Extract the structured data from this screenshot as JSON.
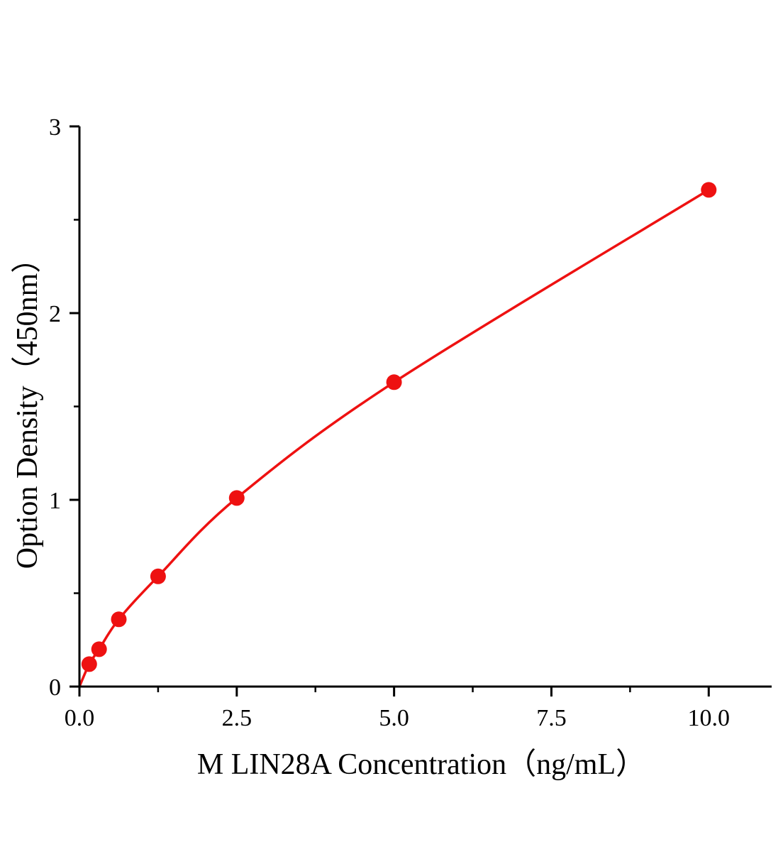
{
  "chart_data": {
    "type": "line",
    "title": "",
    "xlabel": "M LIN28A Concentration（ng/mL）",
    "ylabel": "Option Density（450nm）",
    "x": [
      0.156,
      0.3125,
      0.625,
      1.25,
      2.5,
      5.0,
      10.0
    ],
    "y": [
      0.12,
      0.2,
      0.36,
      0.59,
      1.01,
      1.63,
      2.66
    ],
    "curve_start": [
      0,
      0
    ],
    "xlim": [
      0,
      11
    ],
    "ylim": [
      0,
      3
    ],
    "x_ticks": [
      0.0,
      2.5,
      5.0,
      7.5,
      10.0
    ],
    "x_tick_labels": [
      "0.0",
      "2.5",
      "5.0",
      "7.5",
      "10.0"
    ],
    "y_ticks": [
      0,
      1,
      2,
      3
    ],
    "y_tick_labels": [
      "0",
      "1",
      "2",
      "3"
    ],
    "x_minor_ticks": [
      1.25,
      3.75,
      6.25,
      8.75
    ],
    "y_minor_ticks": [
      0.5,
      1.5,
      2.5
    ],
    "line_color": "#ee1111",
    "marker_color": "#ee1111",
    "axis_color": "#000000",
    "grid": false,
    "legend_position": "none"
  }
}
